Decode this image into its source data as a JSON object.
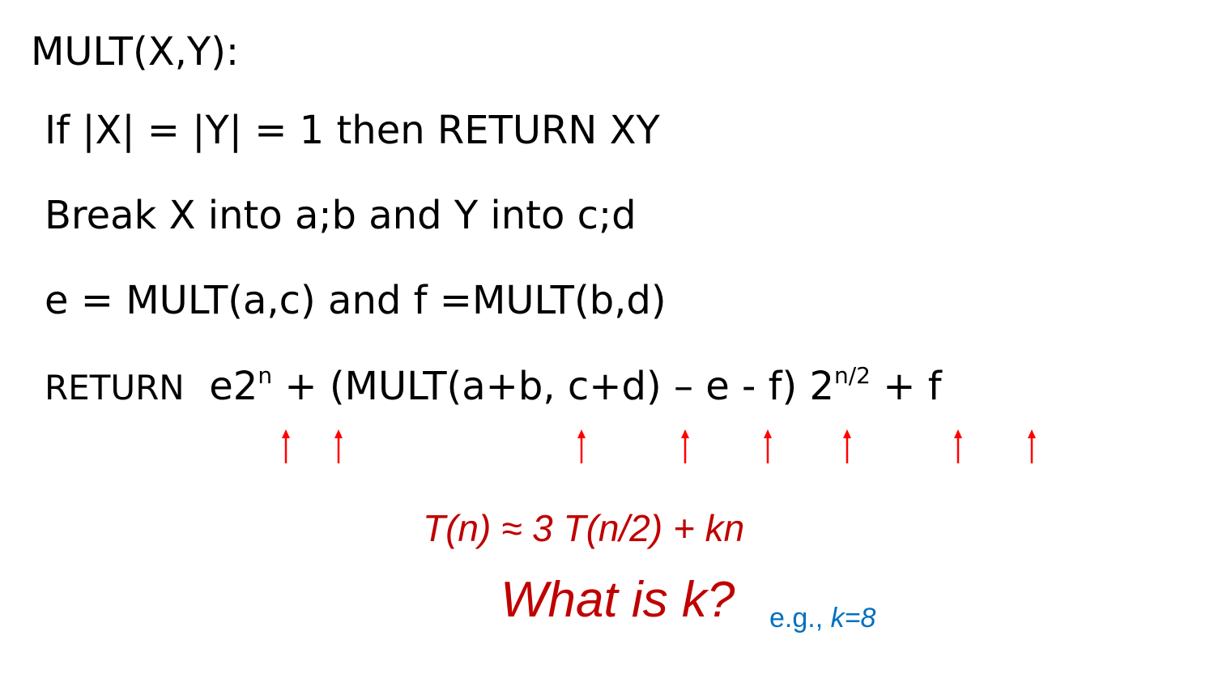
{
  "lines": {
    "l1": "MULT(X,Y):",
    "l2": "If |X| = |Y| = 1 then RETURN XY",
    "l3": "Break X into a;b and Y into c;d",
    "l4": "e = MULT(a,c) and f =MULT(b,d)",
    "l5": {
      "keyword": "RETURN",
      "part_a": "e2",
      "sup_a": "n",
      "part_b": " + (MULT(a+b, c+d) – e - f) 2",
      "sup_b": "n/2",
      "part_c": " + f"
    }
  },
  "arrow_color": "#ff0000",
  "recurrence": "T(n) ≈ 3 T(n/2) + kn",
  "question": "What is k?",
  "example": {
    "prefix": "e.g., ",
    "value": "k=8"
  },
  "colors": {
    "text": "#000000",
    "accent_red": "#c00000",
    "accent_blue": "#0070c0"
  }
}
